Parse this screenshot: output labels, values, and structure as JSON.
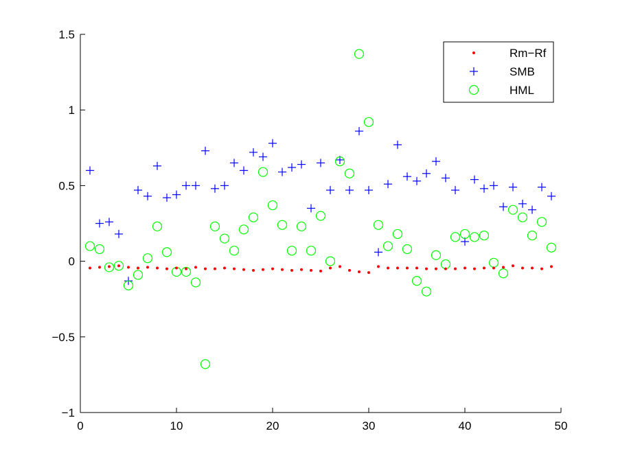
{
  "chart_data": {
    "type": "scatter",
    "title": "",
    "xlabel": "",
    "ylabel": "",
    "xlim": [
      0,
      50
    ],
    "ylim": [
      -1,
      1.5
    ],
    "x_ticks": [
      0,
      10,
      20,
      30,
      40,
      50
    ],
    "x_tick_labels": [
      "0",
      "10",
      "20",
      "30",
      "40",
      "50"
    ],
    "y_ticks": [
      -1,
      -0.5,
      0,
      0.5,
      1,
      1.5
    ],
    "y_tick_labels": [
      "−1",
      "−0.5",
      "0",
      "0.5",
      "1",
      "1.5"
    ],
    "grid": false,
    "legend_position": "top-right",
    "x": [
      1,
      2,
      3,
      4,
      5,
      6,
      7,
      8,
      9,
      10,
      11,
      12,
      13,
      14,
      15,
      16,
      17,
      18,
      19,
      20,
      21,
      22,
      23,
      24,
      25,
      26,
      27,
      28,
      29,
      30,
      31,
      32,
      33,
      34,
      35,
      36,
      37,
      38,
      39,
      40,
      41,
      42,
      43,
      44,
      45,
      46,
      47,
      48,
      49
    ],
    "series": [
      {
        "name": "Rm−Rf",
        "marker": "dot",
        "color": "#ff0000",
        "values": [
          -0.045,
          -0.04,
          -0.035,
          -0.03,
          -0.04,
          -0.045,
          -0.04,
          -0.045,
          -0.05,
          -0.045,
          -0.05,
          -0.04,
          -0.05,
          -0.05,
          -0.045,
          -0.05,
          -0.055,
          -0.06,
          -0.055,
          -0.05,
          -0.055,
          -0.06,
          -0.055,
          -0.06,
          -0.065,
          -0.045,
          -0.035,
          -0.06,
          -0.07,
          -0.075,
          -0.035,
          -0.045,
          -0.045,
          -0.045,
          -0.045,
          -0.05,
          -0.05,
          -0.05,
          -0.05,
          -0.045,
          -0.05,
          -0.045,
          -0.045,
          -0.04,
          -0.03,
          -0.045,
          -0.045,
          -0.05,
          -0.035
        ]
      },
      {
        "name": "SMB",
        "marker": "plus",
        "color": "#0000ff",
        "values": [
          0.6,
          0.25,
          0.26,
          0.18,
          -0.13,
          0.47,
          0.43,
          0.63,
          0.42,
          0.44,
          0.5,
          0.5,
          0.73,
          0.48,
          0.5,
          0.65,
          0.6,
          0.72,
          0.69,
          0.78,
          0.59,
          0.62,
          0.64,
          0.35,
          0.65,
          0.47,
          0.67,
          0.47,
          0.86,
          0.47,
          0.06,
          0.51,
          0.77,
          0.56,
          0.53,
          0.58,
          0.66,
          0.55,
          0.47,
          0.13,
          0.54,
          0.48,
          0.5,
          0.36,
          0.49,
          0.38,
          0.34,
          0.49,
          0.43
        ]
      },
      {
        "name": "HML",
        "marker": "circle",
        "color": "#00ff00",
        "values": [
          0.1,
          0.08,
          -0.04,
          -0.03,
          -0.16,
          -0.09,
          0.02,
          0.23,
          0.06,
          -0.07,
          -0.07,
          -0.14,
          -0.68,
          0.23,
          0.15,
          0.07,
          0.21,
          0.29,
          0.59,
          0.37,
          0.24,
          0.07,
          0.23,
          0.07,
          0.3,
          0.0,
          0.66,
          0.58,
          1.37,
          0.92,
          0.24,
          0.1,
          0.18,
          0.08,
          -0.13,
          -0.2,
          0.04,
          -0.02,
          0.16,
          0.18,
          0.16,
          0.17,
          -0.01,
          -0.08,
          0.34,
          0.29,
          0.17,
          0.26,
          0.09
        ]
      }
    ]
  }
}
